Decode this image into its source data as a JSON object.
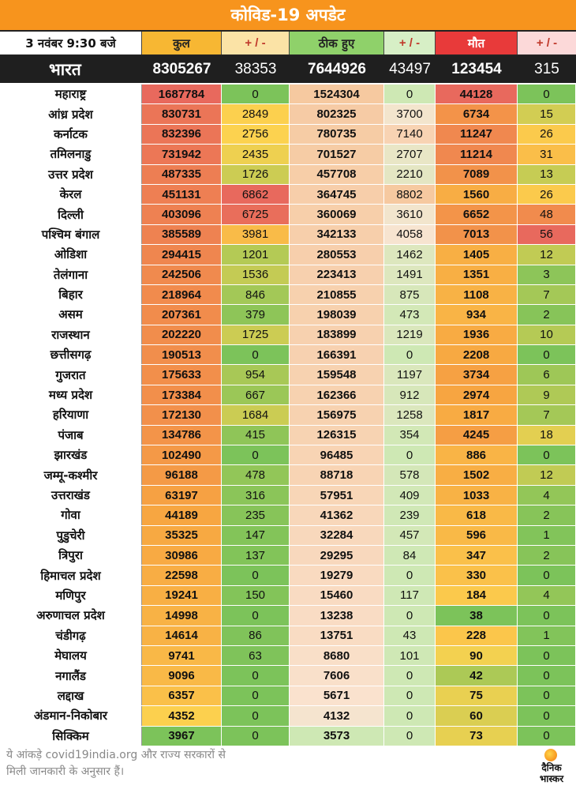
{
  "title": "कोविड-19 अपडेट",
  "header": {
    "date": "3 नवंबर 9:30 बजे",
    "total": "कुल",
    "pm": "+ / -",
    "recovered": "ठीक हुए",
    "deaths": "मौत"
  },
  "india": {
    "name": "भारत",
    "total": "8305267",
    "total_change": "38353",
    "recovered": "7644926",
    "recovered_change": "43497",
    "deaths": "123454",
    "deaths_change": "315"
  },
  "colors": {
    "banner": "#f7941d",
    "green": "#7cc35a",
    "yellow": "#fcd24f",
    "orange": "#f7a541",
    "red": "#e8695d",
    "peach": "#f6c9a0"
  },
  "rows": [
    {
      "name": "महाराष्ट्र",
      "total": "1687784",
      "tc": "0",
      "rec": "1524304",
      "rc": "0",
      "d": "44128",
      "dc": "0"
    },
    {
      "name": "आंध्र प्रदेश",
      "total": "830731",
      "tc": "2849",
      "rec": "802325",
      "rc": "3700",
      "d": "6734",
      "dc": "15"
    },
    {
      "name": "कर्नाटक",
      "total": "832396",
      "tc": "2756",
      "rec": "780735",
      "rc": "7140",
      "d": "11247",
      "dc": "26"
    },
    {
      "name": "तमिलनाडु",
      "total": "731942",
      "tc": "2435",
      "rec": "701527",
      "rc": "2707",
      "d": "11214",
      "dc": "31"
    },
    {
      "name": "उत्तर प्रदेश",
      "total": "487335",
      "tc": "1726",
      "rec": "457708",
      "rc": "2210",
      "d": "7089",
      "dc": "13"
    },
    {
      "name": "केरल",
      "total": "451131",
      "tc": "6862",
      "rec": "364745",
      "rc": "8802",
      "d": "1560",
      "dc": "26"
    },
    {
      "name": "दिल्ली",
      "total": "403096",
      "tc": "6725",
      "rec": "360069",
      "rc": "3610",
      "d": "6652",
      "dc": "48"
    },
    {
      "name": "पश्चिम बंगाल",
      "total": "385589",
      "tc": "3981",
      "rec": "342133",
      "rc": "4058",
      "d": "7013",
      "dc": "56"
    },
    {
      "name": "ओडिशा",
      "total": "294415",
      "tc": "1201",
      "rec": "280553",
      "rc": "1462",
      "d": "1405",
      "dc": "12"
    },
    {
      "name": "तेलंगाना",
      "total": "242506",
      "tc": "1536",
      "rec": "223413",
      "rc": "1491",
      "d": "1351",
      "dc": "3"
    },
    {
      "name": "बिहार",
      "total": "218964",
      "tc": "846",
      "rec": "210855",
      "rc": "875",
      "d": "1108",
      "dc": "7"
    },
    {
      "name": "असम",
      "total": "207361",
      "tc": "379",
      "rec": "198039",
      "rc": "473",
      "d": "934",
      "dc": "2"
    },
    {
      "name": "राजस्थान",
      "total": "202220",
      "tc": "1725",
      "rec": "183899",
      "rc": "1219",
      "d": "1936",
      "dc": "10"
    },
    {
      "name": "छत्तीसगढ़",
      "total": "190513",
      "tc": "0",
      "rec": "166391",
      "rc": "0",
      "d": "2208",
      "dc": "0"
    },
    {
      "name": "गुजरात",
      "total": "175633",
      "tc": "954",
      "rec": "159548",
      "rc": "1197",
      "d": "3734",
      "dc": "6"
    },
    {
      "name": "मध्य प्रदेश",
      "total": "173384",
      "tc": "667",
      "rec": "162366",
      "rc": "912",
      "d": "2974",
      "dc": "9"
    },
    {
      "name": "हरियाणा",
      "total": "172130",
      "tc": "1684",
      "rec": "156975",
      "rc": "1258",
      "d": "1817",
      "dc": "7"
    },
    {
      "name": "पंजाब",
      "total": "134786",
      "tc": "415",
      "rec": "126315",
      "rc": "354",
      "d": "4245",
      "dc": "18"
    },
    {
      "name": "झारखंड",
      "total": "102490",
      "tc": "0",
      "rec": "96485",
      "rc": "0",
      "d": "886",
      "dc": "0"
    },
    {
      "name": "जम्मू-कश्मीर",
      "total": "96188",
      "tc": "478",
      "rec": "88718",
      "rc": "578",
      "d": "1502",
      "dc": "12"
    },
    {
      "name": "उत्तराखंड",
      "total": "63197",
      "tc": "316",
      "rec": "57951",
      "rc": "409",
      "d": "1033",
      "dc": "4"
    },
    {
      "name": "गोवा",
      "total": "44189",
      "tc": "235",
      "rec": "41362",
      "rc": "239",
      "d": "618",
      "dc": "2"
    },
    {
      "name": "पुडुचेरी",
      "total": "35325",
      "tc": "147",
      "rec": "32284",
      "rc": "457",
      "d": "596",
      "dc": "1"
    },
    {
      "name": "त्रिपुरा",
      "total": "30986",
      "tc": "137",
      "rec": "29295",
      "rc": "84",
      "d": "347",
      "dc": "2"
    },
    {
      "name": "हिमाचल प्रदेश",
      "total": "22598",
      "tc": "0",
      "rec": "19279",
      "rc": "0",
      "d": "330",
      "dc": "0"
    },
    {
      "name": "मणिपुर",
      "total": "19241",
      "tc": "150",
      "rec": "15460",
      "rc": "117",
      "d": "184",
      "dc": "4"
    },
    {
      "name": "अरुणाचल प्रदेश",
      "total": "14998",
      "tc": "0",
      "rec": "13238",
      "rc": "0",
      "d": "38",
      "dc": "0"
    },
    {
      "name": "चंडीगढ़",
      "total": "14614",
      "tc": "86",
      "rec": "13751",
      "rc": "43",
      "d": "228",
      "dc": "1"
    },
    {
      "name": "मेघालय",
      "total": "9741",
      "tc": "63",
      "rec": "8680",
      "rc": "101",
      "d": "90",
      "dc": "0"
    },
    {
      "name": "नगालैंड",
      "total": "9096",
      "tc": "0",
      "rec": "7606",
      "rc": "0",
      "d": "42",
      "dc": "0"
    },
    {
      "name": "लद्दाख",
      "total": "6357",
      "tc": "0",
      "rec": "5671",
      "rc": "0",
      "d": "75",
      "dc": "0"
    },
    {
      "name": "अंडमान-निकोबार",
      "total": "4352",
      "tc": "0",
      "rec": "4132",
      "rc": "0",
      "d": "60",
      "dc": "0"
    },
    {
      "name": "सिक्किम",
      "total": "3967",
      "tc": "0",
      "rec": "3573",
      "rc": "0",
      "d": "73",
      "dc": "0"
    }
  ],
  "footer": {
    "note_line1": "ये आंकड़े covid19india.org और राज्य सरकारों से",
    "note_line2": "मिली जानकारी के अनुसार हैं।",
    "logo_line1": "दैनिक",
    "logo_line2": "भास्कर"
  }
}
